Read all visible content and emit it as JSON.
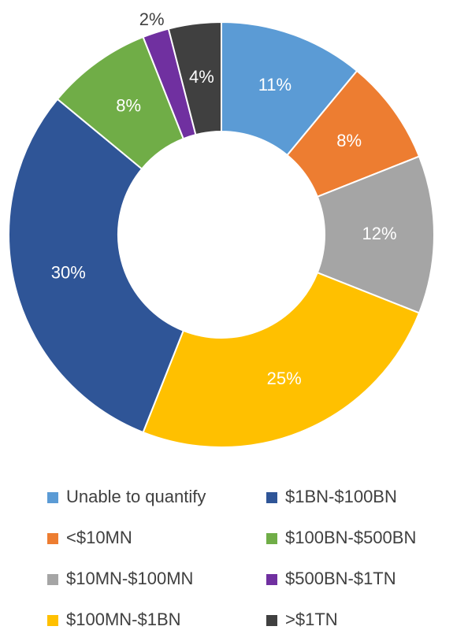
{
  "chart_data": {
    "type": "pie",
    "categories": [
      "Unable to quantify",
      "<$10MN",
      "$10MN-$100MN",
      "$100MN-$1BN",
      "$1BN-$100BN",
      "$100BN-$500BN",
      "$500BN-$1TN",
      ">$1TN"
    ],
    "values": [
      11,
      8,
      12,
      25,
      30,
      8,
      2,
      4
    ],
    "value_labels": [
      "11%",
      "8%",
      "12%",
      "25%",
      "30%",
      "8%",
      "2%",
      "4%"
    ],
    "colors": [
      "#5b9bd5",
      "#ed7d31",
      "#a5a5a5",
      "#ffc000",
      "#2f5597",
      "#70ad47",
      "#7030a0",
      "#404040"
    ],
    "donut": true,
    "legend": "bottom"
  }
}
